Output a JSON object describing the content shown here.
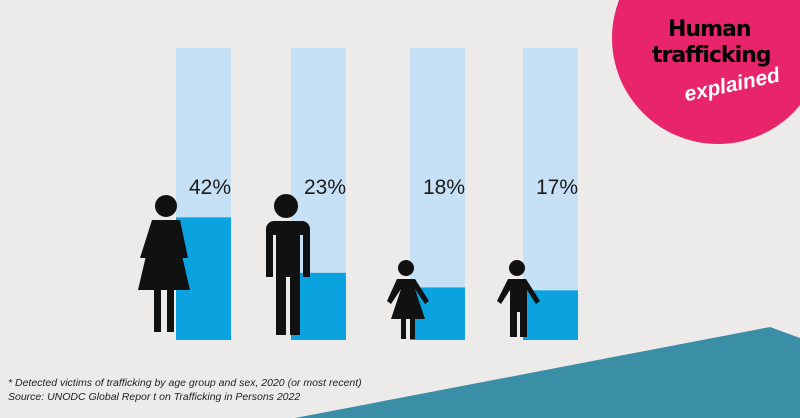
{
  "chart_data": {
    "type": "bar",
    "values": [
      42,
      23,
      18,
      17
    ],
    "value_labels": [
      "42%",
      "23%",
      "18%",
      "17%"
    ],
    "ylim": [
      0,
      100
    ],
    "color": "#0aa2df",
    "track_color": "#c6e1f5"
  },
  "badge": [
    "Human",
    "trafficking",
    "explained"
  ],
  "notes": [
    "* Detected victims of trafficking by age group and sex, 2020 (or most recent)",
    "Source: UNODC Global Repor t on Trafficking in Persons 2022"
  ]
}
